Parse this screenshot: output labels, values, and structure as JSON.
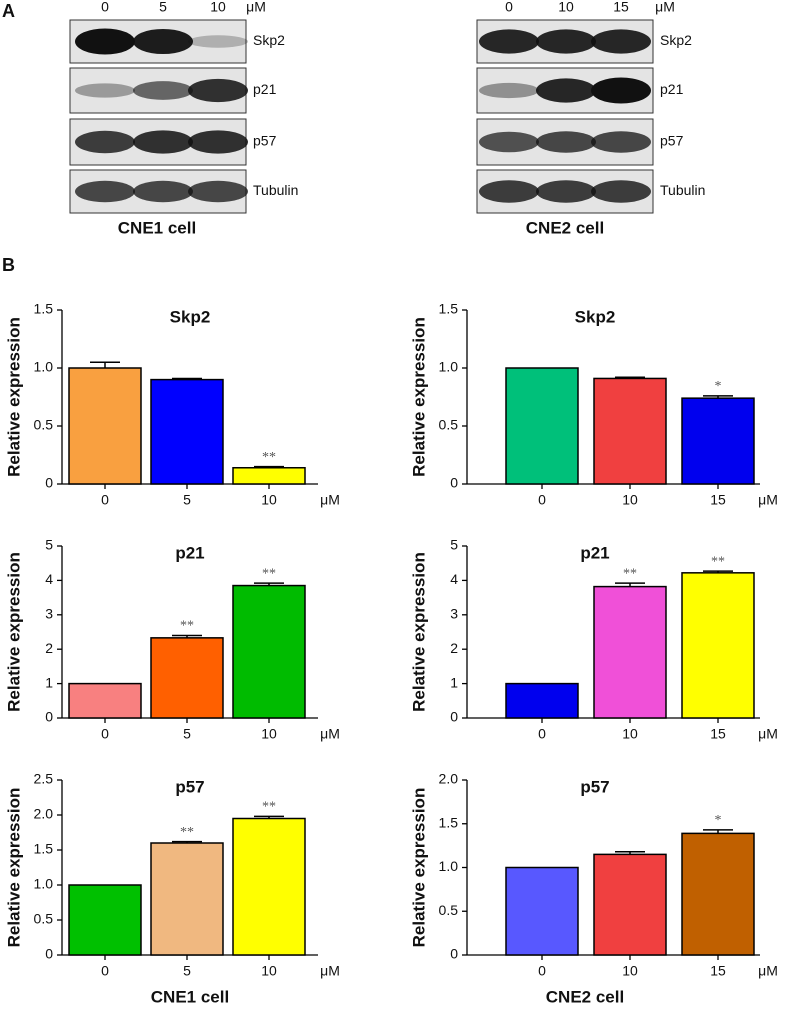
{
  "panel_a": {
    "label": "A",
    "blots": [
      {
        "caption": "CNE1 cell",
        "unit": "μM",
        "lanes": [
          "0",
          "5",
          "10"
        ],
        "proteins": [
          "Skp2",
          "p21",
          "p57",
          "Tubulin"
        ]
      },
      {
        "caption": "CNE2 cell",
        "unit": "μM",
        "lanes": [
          "0",
          "10",
          "15"
        ],
        "proteins": [
          "Skp2",
          "p21",
          "p57",
          "Tubulin"
        ]
      }
    ]
  },
  "panel_b": {
    "label": "B",
    "captions": [
      "CNE1 cell",
      "CNE2 cell"
    ]
  },
  "chart_data": [
    {
      "type": "bar",
      "title": "Skp2",
      "ylabel": "Relative expression",
      "x_unit": "μM",
      "categories": [
        "0",
        "5",
        "10"
      ],
      "values": [
        1.0,
        0.9,
        0.14
      ],
      "errors": [
        0.05,
        0.01,
        0.01
      ],
      "annotations": [
        null,
        null,
        "**"
      ],
      "colors": [
        "#f9a040",
        "#0000ff",
        "#ffff00"
      ],
      "ylim": [
        0,
        1.5
      ],
      "yticks": [
        0,
        0.5,
        {
          "value": 1,
          "label": "1.0"
        },
        1.5
      ]
    },
    {
      "type": "bar",
      "title": "Skp2",
      "ylabel": "Relative expression",
      "x_unit": "μM",
      "categories": [
        "0",
        "10",
        "15"
      ],
      "values": [
        1.0,
        0.91,
        0.74
      ],
      "errors": [
        null,
        0.01,
        0.02
      ],
      "annotations": [
        null,
        null,
        "*"
      ],
      "colors": [
        "#00c07a",
        "#f04040",
        "#0000ee"
      ],
      "ylim": [
        0,
        1.5
      ],
      "yticks": [
        0,
        0.5,
        {
          "value": 1,
          "label": "1.0"
        },
        1.5
      ]
    },
    {
      "type": "bar",
      "title": "p21",
      "ylabel": "Relative expression",
      "x_unit": "μM",
      "categories": [
        "0",
        "5",
        "10"
      ],
      "values": [
        1.0,
        2.33,
        3.85
      ],
      "errors": [
        null,
        0.07,
        0.07
      ],
      "annotations": [
        null,
        "**",
        "**"
      ],
      "colors": [
        "#f88080",
        "#ff6000",
        "#00bb00"
      ],
      "ylim": [
        0,
        5
      ],
      "yticks": [
        0,
        1,
        2,
        3,
        4,
        5
      ]
    },
    {
      "type": "bar",
      "title": "p21",
      "ylabel": "Relative expression",
      "x_unit": "μM",
      "categories": [
        "0",
        "10",
        "15"
      ],
      "values": [
        1.0,
        3.82,
        4.22
      ],
      "errors": [
        null,
        0.1,
        0.05
      ],
      "annotations": [
        null,
        "**",
        "**"
      ],
      "colors": [
        "#0000ee",
        "#f050d8",
        "#ffff00"
      ],
      "ylim": [
        0,
        5
      ],
      "yticks": [
        0,
        1,
        2,
        3,
        4,
        5
      ]
    },
    {
      "type": "bar",
      "title": "p57",
      "ylabel": "Relative expression",
      "x_unit": "μM",
      "categories": [
        "0",
        "5",
        "10"
      ],
      "values": [
        1.0,
        1.6,
        1.95
      ],
      "errors": [
        null,
        0.02,
        0.03
      ],
      "annotations": [
        null,
        "**",
        "**"
      ],
      "colors": [
        "#00c000",
        "#f0b880",
        "#ffff00"
      ],
      "ylim": [
        0,
        2.5
      ],
      "yticks": [
        0,
        0.5,
        {
          "value": 1,
          "label": "1.0"
        },
        1.5,
        {
          "value": 2,
          "label": "2.0"
        },
        2.5
      ]
    },
    {
      "type": "bar",
      "title": "p57",
      "ylabel": "Relative expression",
      "x_unit": "μM",
      "categories": [
        "0",
        "10",
        "15"
      ],
      "values": [
        1.0,
        1.15,
        1.39
      ],
      "errors": [
        null,
        0.03,
        0.04
      ],
      "annotations": [
        null,
        null,
        "*"
      ],
      "colors": [
        "#5858ff",
        "#f04040",
        "#c06000"
      ],
      "ylim": [
        0,
        2
      ],
      "yticks": [
        0,
        0.5,
        {
          "value": 1,
          "label": "1.0"
        },
        1.5,
        {
          "value": 2,
          "label": "2.0"
        }
      ]
    }
  ]
}
